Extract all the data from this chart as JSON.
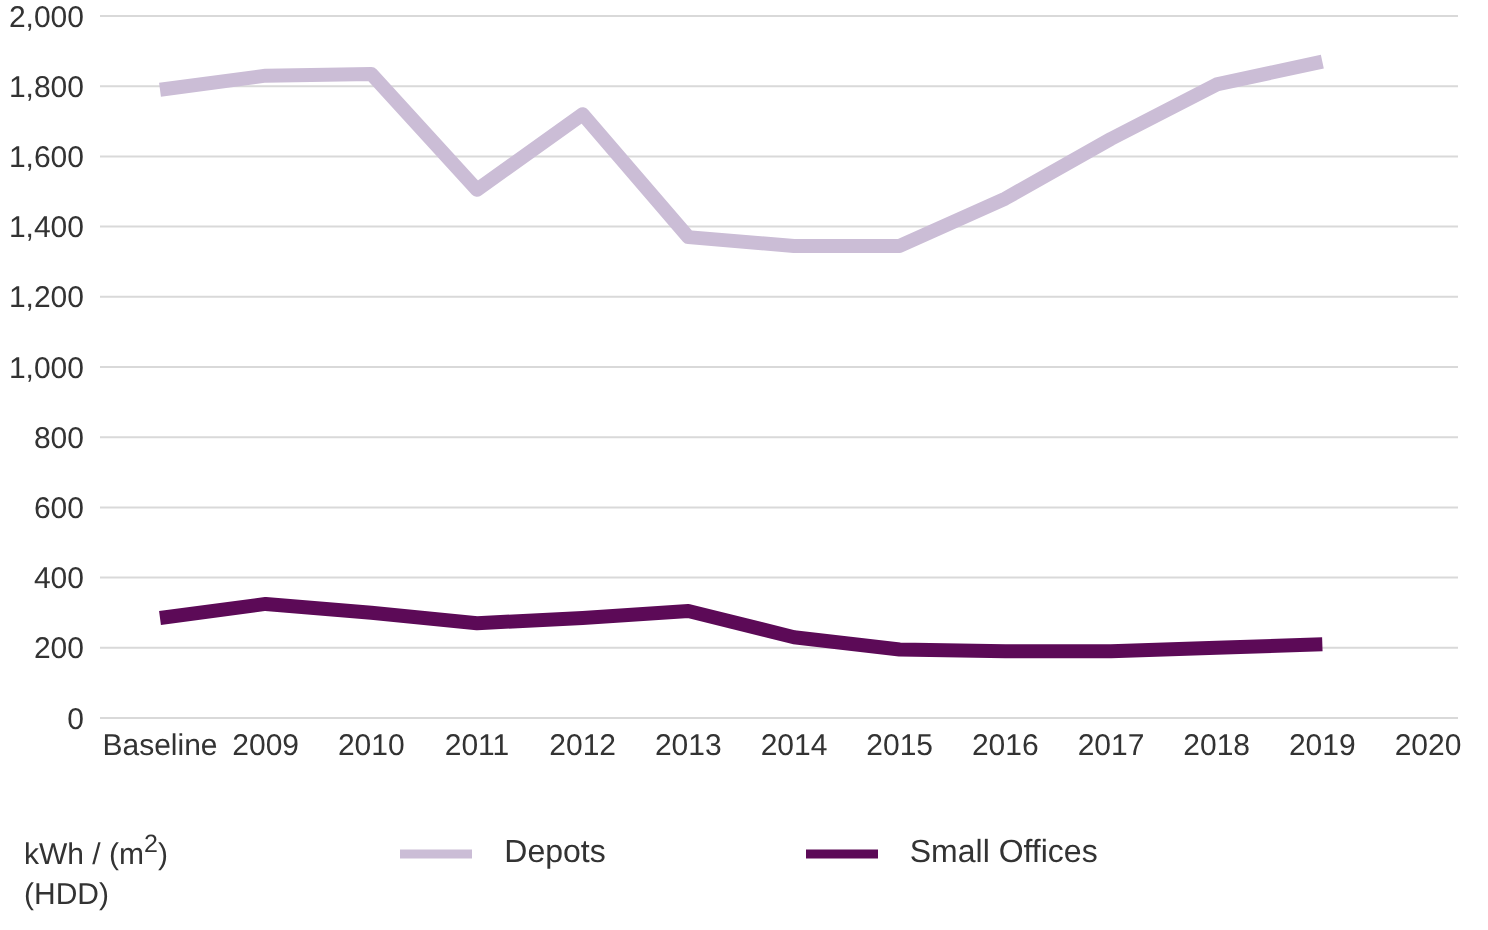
{
  "chart_data": {
    "type": "line",
    "ylabel": "kWh / (m$^{2}$) (HDD)",
    "categories": [
      "Baseline",
      "2009",
      "2010",
      "2011",
      "2012",
      "2013",
      "2014",
      "2015",
      "2016",
      "2017",
      "2018",
      "2019",
      "2020"
    ],
    "series": [
      {
        "name": "Depots",
        "color": "#cbbdd6",
        "values": [
          1790,
          1830,
          1835,
          1505,
          1720,
          1370,
          1345,
          1345,
          1480,
          1650,
          1805,
          1870,
          null
        ]
      },
      {
        "name": "Small Offices",
        "color": "#5c0a57",
        "values": [
          285,
          325,
          300,
          270,
          285,
          305,
          230,
          195,
          190,
          190,
          200,
          210,
          null
        ]
      }
    ],
    "ylim": [
      0,
      2000
    ],
    "yticks": [
      0,
      200,
      400,
      600,
      800,
      {
        "value": 1000,
        "label": "1,000"
      },
      {
        "value": 1200,
        "label": "1,200"
      },
      {
        "value": 1400,
        "label": "1,400"
      },
      {
        "value": 1600,
        "label": "1,600"
      },
      {
        "value": 1800,
        "label": "1,800"
      },
      {
        "value": 2000,
        "label": "2,000"
      }
    ],
    "grid": "y",
    "legend": "bottom",
    "marker": "none",
    "line_style": "solid"
  }
}
